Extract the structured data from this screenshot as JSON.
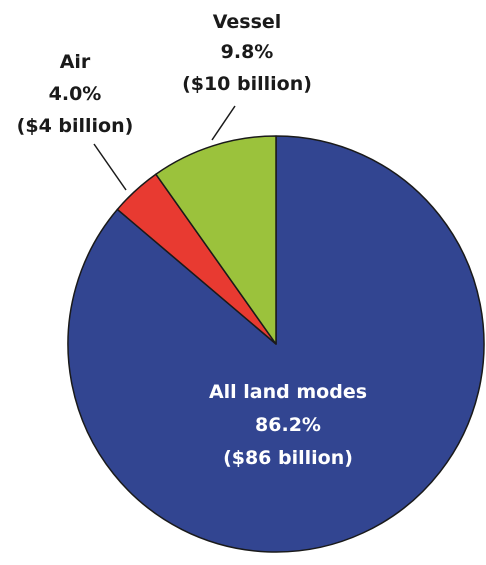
{
  "chart_data": {
    "type": "pie",
    "start_angle_deg": 0,
    "direction": "clockwise",
    "slices": [
      {
        "name": "All land modes",
        "percent_label": "86.2%",
        "amount_label": "($86 billion)",
        "value": 86.2,
        "color": "#324591"
      },
      {
        "name": "Air",
        "percent_label": "4.0%",
        "amount_label": "($4 billion)",
        "value": 4.0,
        "color": "#e83a31"
      },
      {
        "name": "Vessel",
        "percent_label": "9.8%",
        "amount_label": "($10 billion)",
        "value": 9.8,
        "color": "#9bc23c"
      }
    ]
  }
}
